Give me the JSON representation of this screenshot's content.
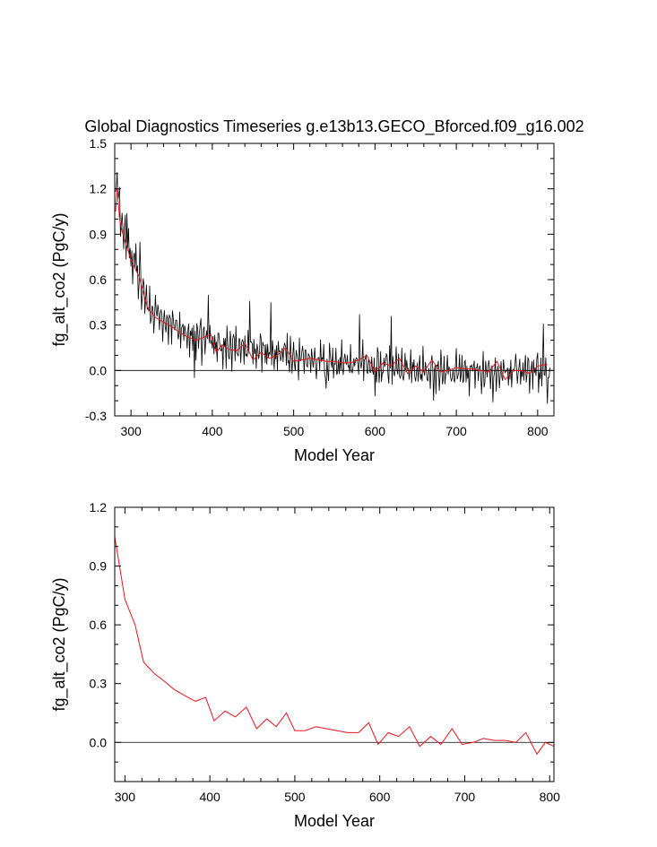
{
  "title": "Global Diagnostics Timeseries g.e13b13.GECO_Bforced.f09_g16.002",
  "colors": {
    "raw_series": "#000000",
    "smoothed_series": "#e8141c",
    "zero_line": "#000000",
    "frame": "#000000"
  },
  "chart_data": [
    {
      "type": "line",
      "xlabel": "Model Year",
      "ylabel": "fg_alt_co2 (PgC/y)",
      "xlim": [
        280,
        820
      ],
      "ylim": [
        -0.3,
        1.5
      ],
      "x_ticks": [
        "300",
        "400",
        "500",
        "600",
        "700",
        "800"
      ],
      "y_ticks": [
        "-0.3",
        "0.0",
        "0.3",
        "0.6",
        "0.9",
        "1.2",
        "1.5"
      ],
      "grid": false,
      "reference_line_y": 0,
      "raw_series": {
        "start_year": 281,
        "end_year": 815,
        "trend": [
          [
            281,
            1.2
          ],
          [
            290,
            0.95
          ],
          [
            300,
            0.72
          ],
          [
            310,
            0.58
          ],
          [
            320,
            0.42
          ],
          [
            340,
            0.33
          ],
          [
            360,
            0.27
          ],
          [
            380,
            0.22
          ],
          [
            400,
            0.19
          ],
          [
            420,
            0.16
          ],
          [
            450,
            0.13
          ],
          [
            500,
            0.08
          ],
          [
            550,
            0.05
          ],
          [
            600,
            0.03
          ],
          [
            650,
            0.0
          ],
          [
            700,
            0.0
          ],
          [
            815,
            0.0
          ]
        ],
        "noise_amplitude": 0.14,
        "peaks": [
          [
            283,
            1.31
          ],
          [
            295,
            1.04
          ],
          [
            306,
            0.84
          ],
          [
            311,
            0.85
          ],
          [
            395,
            0.5
          ],
          [
            446,
            0.46
          ],
          [
            472,
            0.45
          ],
          [
            581,
            0.37
          ],
          [
            620,
            0.36
          ],
          [
            807,
            0.31
          ]
        ],
        "troughs": [
          [
            378,
            -0.05
          ],
          [
            540,
            -0.12
          ],
          [
            600,
            -0.17
          ],
          [
            672,
            -0.2
          ],
          [
            745,
            -0.21
          ],
          [
            812,
            -0.22
          ]
        ]
      },
      "smoothed_series": {
        "x": [
          281,
          283,
          286,
          290,
          300,
          310,
          320,
          330,
          340,
          350,
          360,
          370,
          380,
          390,
          398,
          405,
          412,
          420,
          430,
          440,
          450,
          460,
          470,
          480,
          490,
          500,
          510,
          520,
          530,
          540,
          550,
          560,
          570,
          580,
          590,
          600,
          610,
          620,
          630,
          640,
          650,
          660,
          670,
          680,
          690,
          700,
          710,
          720,
          730,
          740,
          750,
          760,
          770,
          780,
          790,
          800,
          812
        ],
        "values": [
          1.05,
          1.2,
          1.0,
          0.9,
          0.73,
          0.62,
          0.42,
          0.35,
          0.32,
          0.29,
          0.25,
          0.22,
          0.2,
          0.22,
          0.24,
          0.12,
          0.17,
          0.14,
          0.13,
          0.18,
          0.07,
          0.12,
          0.08,
          0.1,
          0.15,
          0.06,
          0.07,
          0.08,
          0.07,
          0.06,
          0.06,
          0.05,
          0.05,
          0.07,
          0.1,
          -0.01,
          0.05,
          0.03,
          0.08,
          -0.02,
          0.03,
          -0.01,
          0.07,
          -0.01,
          0.0,
          0.02,
          0.01,
          0.01,
          0.0,
          -0.01,
          0.06,
          -0.06,
          0.0,
          0.0,
          -0.02,
          0.03,
          0.04
        ]
      }
    },
    {
      "type": "line",
      "xlabel": "Model Year",
      "ylabel": "fg_alt_co2 (PgC/y)",
      "xlim": [
        288,
        805
      ],
      "ylim": [
        -0.2,
        1.2
      ],
      "x_ticks": [
        "300",
        "400",
        "500",
        "600",
        "700",
        "800"
      ],
      "y_ticks": [
        "0.0",
        "0.3",
        "0.6",
        "0.9",
        "1.2"
      ],
      "grid": false,
      "reference_line_y": 0,
      "series": [
        {
          "x": [
            288,
            300,
            312,
            322,
            335,
            347,
            358,
            370,
            383,
            395,
            405,
            418,
            430,
            443,
            455,
            467,
            478,
            490,
            500,
            512,
            525,
            537,
            550,
            562,
            575,
            587,
            598,
            610,
            622,
            635,
            647,
            660,
            672,
            685,
            697,
            710,
            722,
            735,
            748,
            760,
            772,
            785,
            795,
            805
          ],
          "values": [
            1.05,
            0.73,
            0.6,
            0.41,
            0.35,
            0.31,
            0.27,
            0.24,
            0.21,
            0.23,
            0.11,
            0.16,
            0.13,
            0.18,
            0.07,
            0.12,
            0.08,
            0.15,
            0.06,
            0.06,
            0.08,
            0.07,
            0.06,
            0.05,
            0.05,
            0.1,
            -0.01,
            0.05,
            0.03,
            0.08,
            -0.02,
            0.03,
            -0.01,
            0.07,
            -0.01,
            0.0,
            0.02,
            0.01,
            0.01,
            0.0,
            0.05,
            -0.06,
            0.0,
            -0.02
          ]
        }
      ]
    }
  ]
}
